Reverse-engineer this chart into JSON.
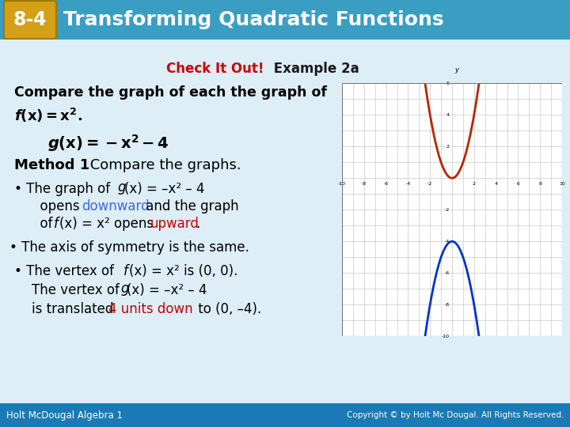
{
  "title_badge": "8-4",
  "title_text": "Transforming Quadratic Functions",
  "title_bg": "#3a9ec2",
  "title_badge_bg": "#d4a017",
  "check_color": "#CC0000",
  "example_color": "#1a1a1a",
  "body_bg": "#ddeef6",
  "footer_bg": "#1a7ab5",
  "footer_left": "Holt McDougal Algebra 1",
  "footer_right": "Copyright © by Holt Mc Dougal. All Rights Reserved.",
  "downward_color": "#4169E1",
  "upward_color": "#CC0000",
  "graph_f_color": "#BB2200",
  "graph_g_color": "#0033CC"
}
